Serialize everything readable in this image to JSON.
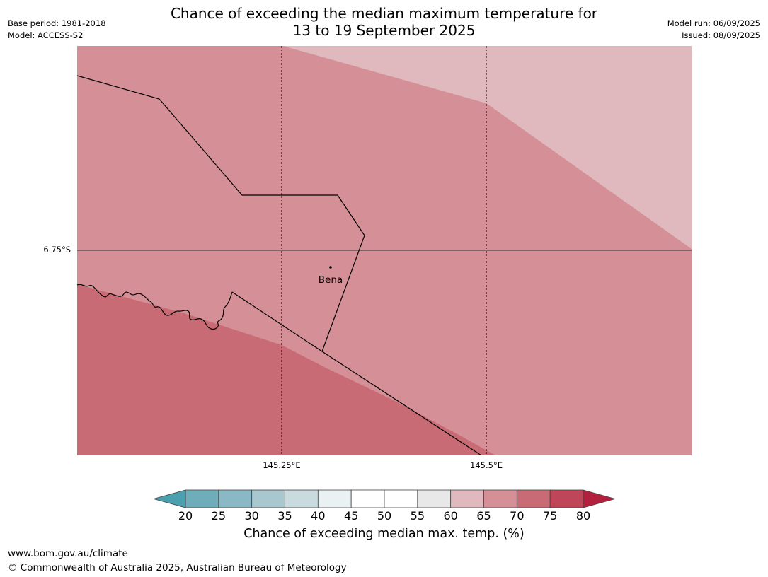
{
  "title": {
    "line1": "Chance of exceeding the median maximum temperature for",
    "line2": "13 to 19 September 2025"
  },
  "meta": {
    "base_period": "Base period: 1981-2018",
    "model": "Model: ACCESS-S2",
    "model_run": "Model run: 06/09/2025",
    "issued": "Issued: 08/09/2025"
  },
  "map": {
    "lat_label": "6.75°S",
    "lon_labels": [
      "145.25°E",
      "145.5°E"
    ],
    "place": "Bena",
    "colors": {
      "band_60_65": "#e0b9be",
      "band_65_70": "#d59097",
      "band_70_75": "#c96b74"
    }
  },
  "colorbar": {
    "ticks": [
      "20",
      "25",
      "30",
      "35",
      "40",
      "45",
      "50",
      "55",
      "60",
      "65",
      "70",
      "75",
      "80"
    ],
    "colors": [
      "#4ba0b0",
      "#6fadbb",
      "#8ab8c5",
      "#a8c7cf",
      "#c9dbdf",
      "#e9f1f3",
      "#ffffff",
      "#ffffff",
      "#e8e8e8",
      "#e0b9be",
      "#d59097",
      "#c96b74",
      "#bf4558",
      "#b3203d"
    ],
    "label": "Chance of exceeding median max. temp. (%)"
  },
  "footer": {
    "url": "www.bom.gov.au/climate",
    "copyright": "© Commonwealth of Australia 2025, Australian Bureau of Meteorology"
  }
}
